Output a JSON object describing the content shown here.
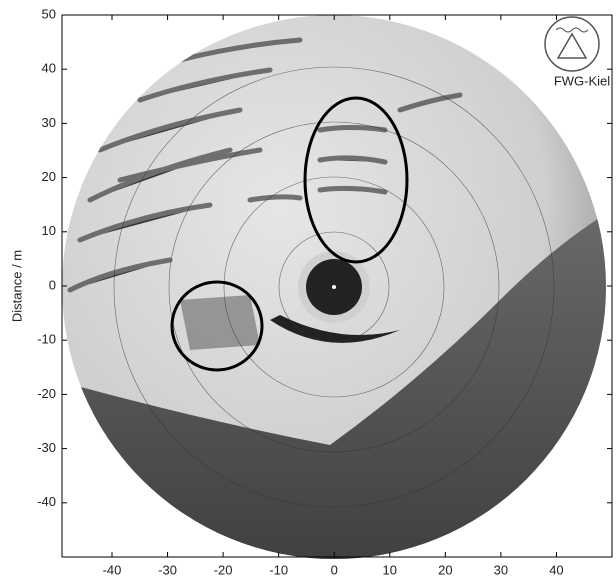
{
  "chart_data": {
    "type": "image",
    "ylabel": "Distance / m",
    "logo_text": "FWG-Kiel",
    "xlim": [
      -49,
      50
    ],
    "ylim": [
      -50,
      50
    ],
    "xticks": [
      -40,
      -30,
      -20,
      -10,
      0,
      10,
      20,
      30,
      40
    ],
    "yticks": [
      50,
      40,
      30,
      20,
      10,
      0,
      -10,
      -20,
      -30,
      -40
    ]
  }
}
